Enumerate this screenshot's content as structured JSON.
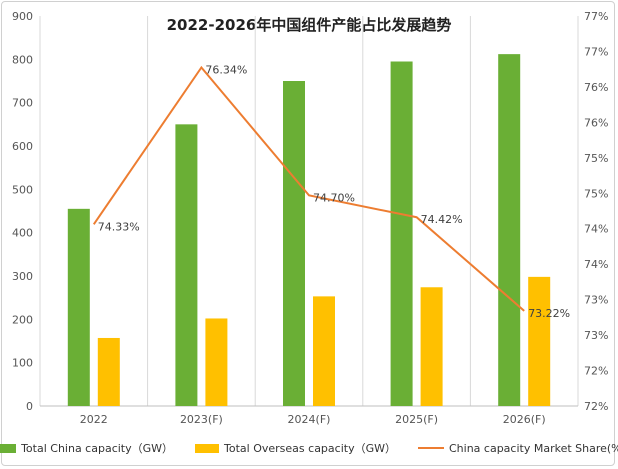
{
  "chart_data": {
    "type": "bar",
    "title": "2022-2026年中国组件产能占比发展趋势",
    "categories": [
      "2022",
      "2023(F)",
      "2024(F)",
      "2025(F)",
      "2026(F)"
    ],
    "series": [
      {
        "name": "Total China capacity（GW）",
        "type": "bar",
        "axis": "left",
        "color": "#6aaf35",
        "values": [
          455,
          650,
          750,
          795,
          812
        ]
      },
      {
        "name": "Total Overseas capacity（GW）",
        "type": "bar",
        "axis": "left",
        "color": "#ffc000",
        "values": [
          157,
          202,
          253,
          274,
          298
        ]
      },
      {
        "name": "China capacity Market Share(%)",
        "type": "line",
        "axis": "right",
        "color": "#ed7d31",
        "values": [
          74.33,
          76.34,
          74.7,
          74.42,
          73.22
        ],
        "labels": [
          "74.33%",
          "76.34%",
          "74.70%",
          "74.42%",
          "73.22%"
        ]
      }
    ],
    "y_left": {
      "ylim": [
        0,
        900
      ],
      "ticks": [
        "0",
        "100",
        "200",
        "300",
        "400",
        "500",
        "600",
        "700",
        "800",
        "900"
      ]
    },
    "y_right": {
      "ylim": [
        72,
        77
      ],
      "ticks": [
        "72%",
        "72%",
        "73%",
        "73%",
        "74%",
        "74%",
        "75%",
        "75%",
        "76%",
        "76%",
        "77%",
        "77%"
      ]
    },
    "grid": "vertical",
    "legend_position": "bottom"
  }
}
